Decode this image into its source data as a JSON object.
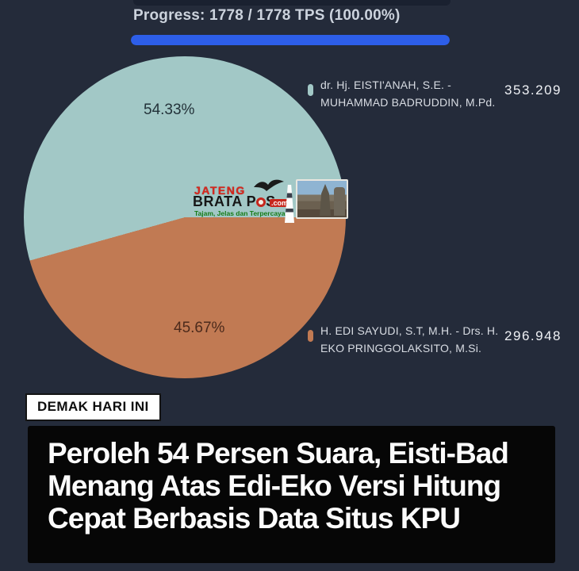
{
  "progress": {
    "label": "Progress: 1778 / 1778 TPS (100.00%)",
    "percent": 100,
    "bar_color": "#2d5ee8"
  },
  "chart_data": {
    "type": "pie",
    "title": "",
    "legend_position": "right",
    "start_angle_deg": 254.4,
    "slices": [
      {
        "label": "dr. Hj. EISTI'ANAH, S.E. - MUHAMMAD BADRUDDIN, M.Pd.",
        "percent": 54.33,
        "percent_label": "54.33%",
        "votes": 353209,
        "votes_display": "353.209",
        "color": "#a2c8c6"
      },
      {
        "label": "H. EDI SAYUDI, S.T, M.H. - Drs. H. EKO PRINGGOLAKSITO, M.Si.",
        "percent": 45.67,
        "percent_label": "45.67%",
        "votes": 296948,
        "votes_display": "296.948",
        "color": "#c17a53"
      }
    ]
  },
  "legend": [
    {
      "name_line1": "dr. Hj. EISTI'ANAH, S.E. -",
      "name_line2": "MUHAMMAD BADRUDDIN, M.Pd.",
      "value": "353.209"
    },
    {
      "name_line1": "H. EDI SAYUDI, S.T, M.H. - Drs. H.",
      "name_line2": "EKO PRINGGOLAKSITO, M.Si.",
      "value": "296.948"
    }
  ],
  "watermark": {
    "line1": "JATENG",
    "line2a": "BRATA P",
    "line2b": "S",
    "dotcom": ".com",
    "tagline": "Tajam, Jelas dan Terpercaya"
  },
  "badge": {
    "label": "DEMAK HARI INI"
  },
  "headline": {
    "lines": [
      "Peroleh 54 Persen Suara, Eisti-Bad",
      "Menang Atas Edi-Eko Versi Hitung",
      "Cepat Berbasis Data Situs KPU"
    ]
  }
}
